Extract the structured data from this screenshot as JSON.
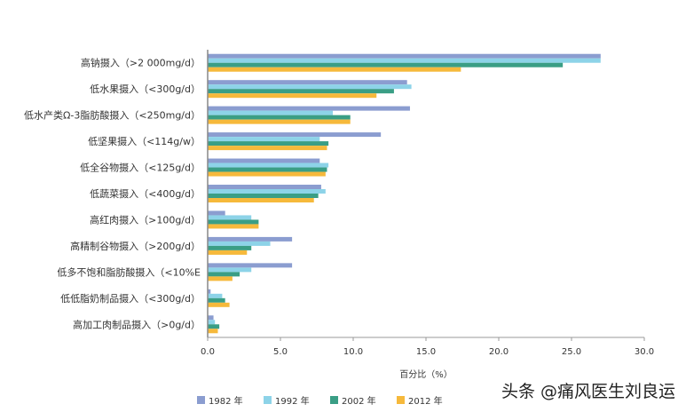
{
  "chart_data": {
    "type": "bar",
    "orientation": "horizontal",
    "categories": [
      "高钠摄入（>2 000mg/d）",
      "低水果摄入（<300g/d）",
      "低水产类Ω-3脂肪酸摄入（<250mg/d）",
      "低坚果摄入（<114g/w）",
      "低全谷物摄入（<125g/d）",
      "低蔬菜摄入（<400g/d）",
      "高红肉摄入（>100g/d）",
      "高精制谷物摄入（>200g/d）",
      "低多不饱和脂肪酸摄入（<10%E",
      "低低脂奶制品摄入（<300g/d）",
      "高加工肉制品摄入（>0g/d）"
    ],
    "series": [
      {
        "name": "1982 年",
        "color": "#8b9dd0",
        "values": [
          27.0,
          13.7,
          13.9,
          11.9,
          7.7,
          7.8,
          1.2,
          5.8,
          5.8,
          0.2,
          0.4
        ]
      },
      {
        "name": "1992 年",
        "color": "#8dd3e8",
        "values": [
          27.0,
          14.0,
          8.6,
          7.7,
          8.3,
          8.1,
          3.0,
          4.3,
          3.0,
          1.0,
          0.5
        ]
      },
      {
        "name": "2002 年",
        "color": "#3a9e85",
        "values": [
          24.4,
          12.8,
          9.8,
          8.3,
          8.2,
          7.6,
          3.5,
          3.0,
          2.2,
          1.2,
          0.8
        ]
      },
      {
        "name": "2012 年",
        "color": "#f6b93b",
        "values": [
          17.4,
          11.6,
          9.8,
          8.2,
          8.1,
          7.3,
          3.5,
          2.7,
          1.7,
          1.5,
          0.7
        ]
      }
    ],
    "xlabel": "百分比（%）",
    "xlim": [
      0,
      30
    ],
    "xticks": [
      "0.0",
      "5.0",
      "10.0",
      "15.0",
      "20.0",
      "25.0",
      "30.0"
    ],
    "grid": false,
    "legend": "bottom"
  },
  "watermark": "头条 @痛风医生刘良运"
}
